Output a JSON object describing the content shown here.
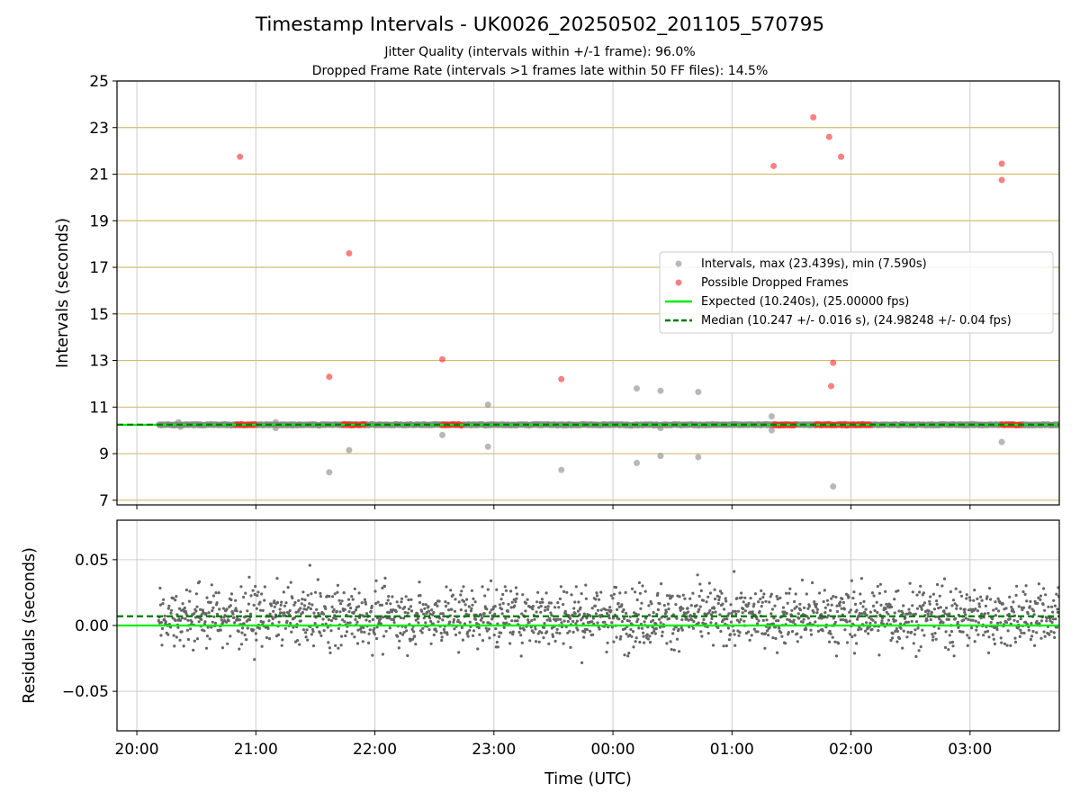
{
  "title": "Timestamp Intervals - UK0026_20250502_201105_570795",
  "subtitle_1": "Jitter Quality (intervals within +/-1 frame): 96.0%",
  "subtitle_2": "Dropped Frame Rate (intervals >1 frames late within 50 FF files): 14.5%",
  "colors": {
    "intervals": "#888888",
    "dropped": "#ff2a2a",
    "expected": "#00ee00",
    "median": "#007700",
    "hgrid_top": "#d4bc72",
    "grid": "#cccccc",
    "residual_points": "#666666"
  },
  "chart_data": [
    {
      "type": "scatter",
      "panel": "top",
      "xlabel": "",
      "ylabel": "Intervals (seconds)",
      "x_unit": "minutes since 20:00 UTC",
      "xlim": [
        -10,
        465
      ],
      "ylim": [
        6.8,
        25
      ],
      "yticks": [
        7,
        9,
        11,
        13,
        15,
        17,
        19,
        21,
        23,
        25
      ],
      "grid": true,
      "legend_position": "center-right",
      "legend": [
        "Intervals, max (23.439s), min (7.590s)",
        "Possible Dropped Frames",
        "Expected (10.240s), (25.00000 fps)",
        "Median (10.247 +/- 0.016 s), (24.98248 +/- 0.04 fps)"
      ],
      "expected_line": 10.24,
      "median_line": 10.247,
      "dense_band": {
        "x_start": 11,
        "x_end": 465,
        "y": 10.24
      },
      "series": [
        {
          "name": "Intervals, max (23.439s), min (7.590s)",
          "points": [
            {
              "x": 21,
              "y": 10.35
            },
            {
              "x": 22,
              "y": 10.15
            },
            {
              "x": 70,
              "y": 10.35
            },
            {
              "x": 70,
              "y": 10.1
            },
            {
              "x": 97,
              "y": 8.2
            },
            {
              "x": 107,
              "y": 9.15
            },
            {
              "x": 154,
              "y": 9.8
            },
            {
              "x": 177,
              "y": 11.1
            },
            {
              "x": 177,
              "y": 9.3
            },
            {
              "x": 214,
              "y": 8.3
            },
            {
              "x": 252,
              "y": 11.8
            },
            {
              "x": 252,
              "y": 8.6
            },
            {
              "x": 264,
              "y": 11.7
            },
            {
              "x": 264,
              "y": 8.9
            },
            {
              "x": 264,
              "y": 10.1
            },
            {
              "x": 283,
              "y": 11.65
            },
            {
              "x": 283,
              "y": 8.85
            },
            {
              "x": 320,
              "y": 10.6
            },
            {
              "x": 320,
              "y": 10.0
            },
            {
              "x": 351,
              "y": 7.59
            },
            {
              "x": 436,
              "y": 9.5
            }
          ]
        },
        {
          "name": "Possible Dropped Frames",
          "points": [
            {
              "x": 52,
              "y": 21.75
            },
            {
              "x": 97,
              "y": 12.3
            },
            {
              "x": 107,
              "y": 17.6
            },
            {
              "x": 154,
              "y": 13.05
            },
            {
              "x": 214,
              "y": 12.2
            },
            {
              "x": 321,
              "y": 21.35
            },
            {
              "x": 341,
              "y": 23.44
            },
            {
              "x": 349,
              "y": 22.6
            },
            {
              "x": 350,
              "y": 11.9
            },
            {
              "x": 351,
              "y": 12.9
            },
            {
              "x": 355,
              "y": 21.75
            },
            {
              "x": 436,
              "y": 21.45
            },
            {
              "x": 436,
              "y": 20.75
            }
          ],
          "clusters": [
            {
              "x_start": 50,
              "x_end": 60,
              "y": 10.24
            },
            {
              "x_start": 104,
              "x_end": 115,
              "y": 10.24
            },
            {
              "x_start": 154,
              "x_end": 164,
              "y": 10.24
            },
            {
              "x_start": 321,
              "x_end": 332,
              "y": 10.24
            },
            {
              "x_start": 342,
              "x_end": 370,
              "y": 10.24
            },
            {
              "x_start": 436,
              "x_end": 446,
              "y": 10.24
            }
          ]
        },
        {
          "name": "Expected (10.240s), (25.00000 fps)",
          "y": 10.24
        },
        {
          "name": "Median (10.247 +/- 0.016 s), (24.98248 +/- 0.04 fps)",
          "y": 10.247
        }
      ]
    },
    {
      "type": "scatter",
      "panel": "bottom",
      "xlabel": "Time (UTC)",
      "ylabel": "Residuals (seconds)",
      "x_unit": "minutes since 20:00 UTC",
      "xlim": [
        -10,
        465
      ],
      "ylim": [
        -0.08,
        0.08
      ],
      "yticks": [
        -0.05,
        0.0,
        0.05
      ],
      "ytick_labels": [
        "−0.05",
        "0.00",
        "0.05"
      ],
      "xticks": [
        0,
        60,
        120,
        180,
        240,
        300,
        360,
        420
      ],
      "xtick_labels": [
        "20:00",
        "21:00",
        "22:00",
        "23:00",
        "00:00",
        "01:00",
        "02:00",
        "03:00"
      ],
      "grid": true,
      "expected_line": 0.0,
      "median_line": 0.007,
      "residual_distribution": {
        "x_start": 11,
        "x_end": 465,
        "count": 1900,
        "mean": 0.007,
        "spread": 0.016,
        "min": -0.052,
        "max": 0.054
      }
    }
  ]
}
